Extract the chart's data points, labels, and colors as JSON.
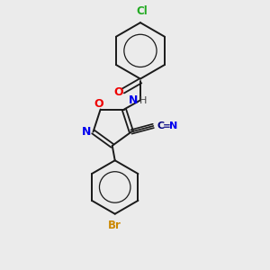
{
  "background_color": "#ebebeb",
  "bond_color": "#1a1a1a",
  "atom_colors": {
    "N": "#0000ee",
    "O": "#ee0000",
    "Cl": "#22aa22",
    "Br": "#cc8800",
    "CN_C": "#000080",
    "CN_N": "#0000ee",
    "H": "#444444"
  },
  "figsize": [
    3.0,
    3.0
  ],
  "dpi": 100
}
